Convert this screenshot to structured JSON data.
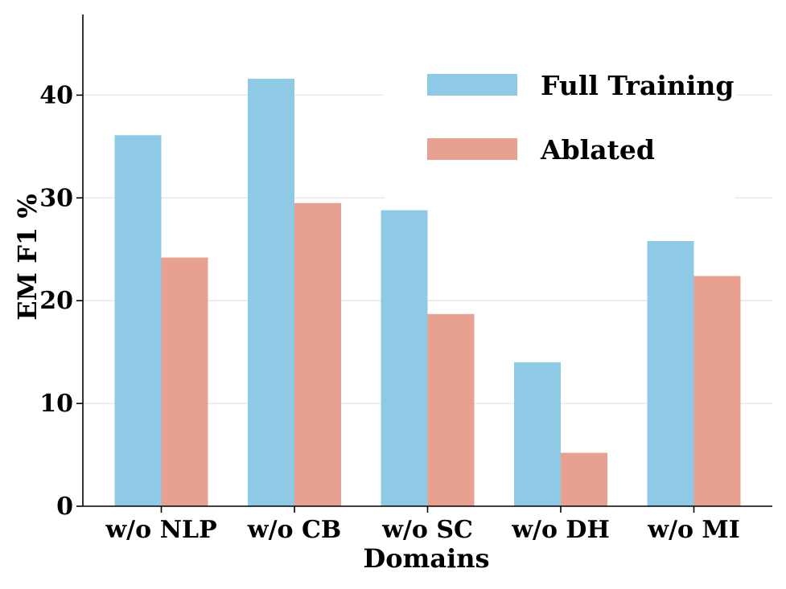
{
  "chart_data": {
    "type": "bar",
    "title": "",
    "xlabel": "Domains",
    "ylabel": "EM F1 %",
    "categories": [
      "w/o NLP",
      "w/o CB",
      "w/o SC",
      "w/o DH",
      "w/o MI"
    ],
    "series": [
      {
        "name": "Full Training",
        "color": "#8ecae6",
        "values": [
          36.1,
          41.6,
          28.8,
          14.0,
          25.8
        ]
      },
      {
        "name": "Ablated",
        "color": "#e8a190",
        "values": [
          24.2,
          29.5,
          18.7,
          5.2,
          22.4
        ]
      }
    ],
    "ylim": [
      0,
      48
    ],
    "yticks": [
      0,
      10,
      20,
      30,
      40
    ],
    "grid": "horizontal",
    "legend_position": "top-right"
  }
}
